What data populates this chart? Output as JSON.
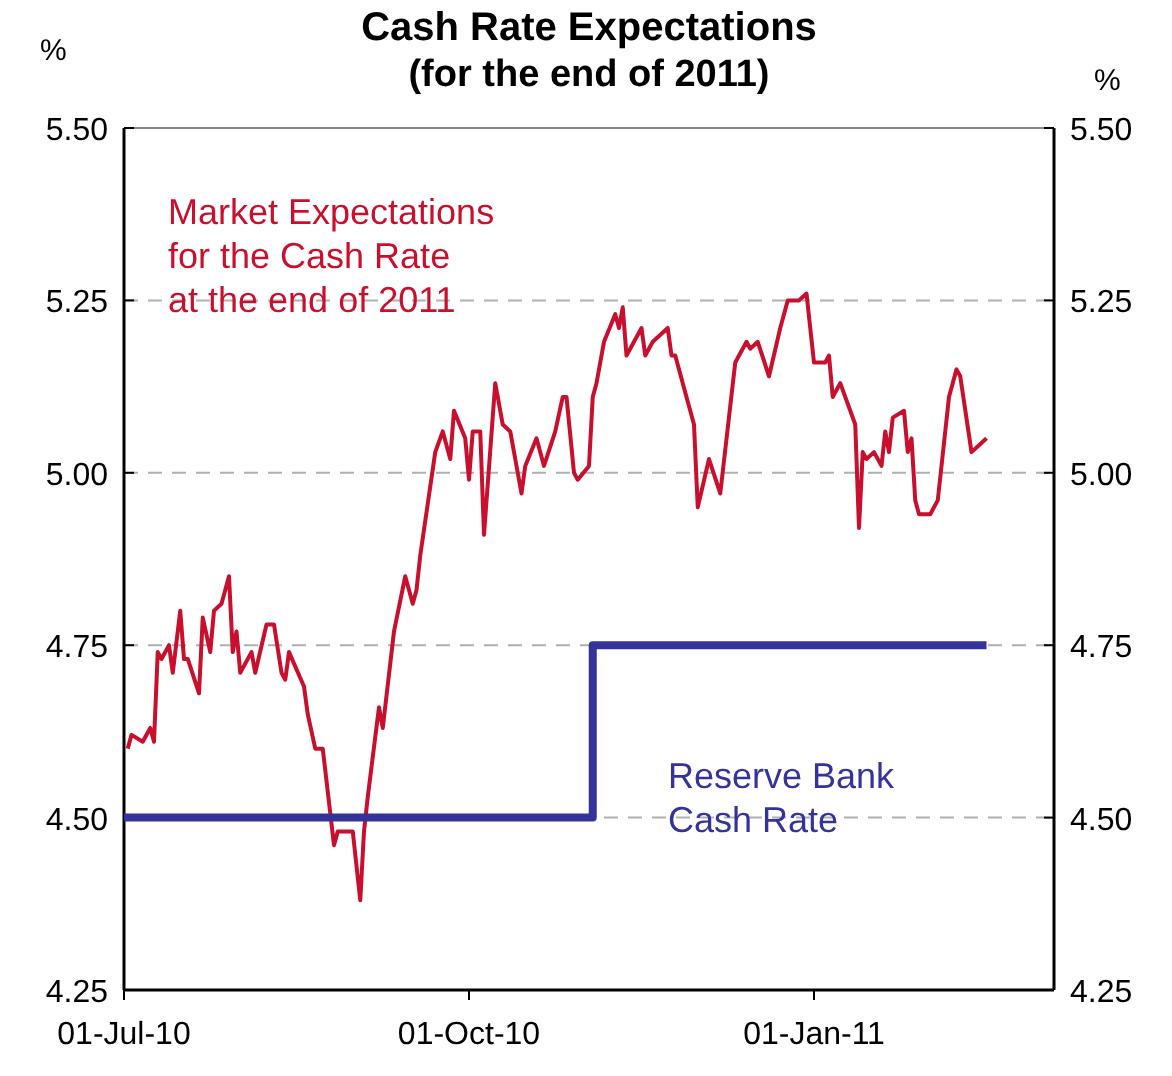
{
  "chart_data": {
    "type": "line",
    "title": "Cash Rate Expectations",
    "subtitle": "(for the end of 2011)",
    "ylabel": "%",
    "y2label": "%",
    "xlim": [
      "2010-07-01",
      "2011-03-06"
    ],
    "xticks": [
      {
        "value": "2010-07-01",
        "label": "01-Jul-10"
      },
      {
        "value": "2010-10-01",
        "label": "01-Oct-10"
      },
      {
        "value": "2011-01-01",
        "label": "01-Jan-11"
      }
    ],
    "ylim": [
      4.25,
      5.5
    ],
    "yticks": [
      {
        "value": 4.25,
        "label": "4.25"
      },
      {
        "value": 4.5,
        "label": "4.50"
      },
      {
        "value": 4.75,
        "label": "4.75"
      },
      {
        "value": 5,
        "label": "5.00"
      },
      {
        "value": 5.25,
        "label": "5.25"
      },
      {
        "value": 5.5,
        "label": "5.50"
      }
    ],
    "y2lim": [
      4.25,
      5.5
    ],
    "y2ticks": [
      {
        "value": 4.25,
        "label": "4.25"
      },
      {
        "value": 4.5,
        "label": "4.50"
      },
      {
        "value": 4.75,
        "label": "4.75"
      },
      {
        "value": 5,
        "label": "5.00"
      },
      {
        "value": 5.25,
        "label": "5.25"
      },
      {
        "value": 5.5,
        "label": "5.50"
      }
    ],
    "grid": "y",
    "legend": false,
    "series": [
      {
        "name": "Market Expectations for the Cash Rate at the end of 2011",
        "color": "#c8102e",
        "x": [
          "2010-07-02",
          "2010-07-03",
          "2010-07-06",
          "2010-07-08",
          "2010-07-09",
          "2010-07-10",
          "2010-07-11",
          "2010-07-13",
          "2010-07-14",
          "2010-07-16",
          "2010-07-17",
          "2010-07-18",
          "2010-07-21",
          "2010-07-22",
          "2010-07-24",
          "2010-07-25",
          "2010-07-27",
          "2010-07-29",
          "2010-07-30",
          "2010-07-31",
          "2010-08-01",
          "2010-08-04",
          "2010-08-05",
          "2010-08-08",
          "2010-08-10",
          "2010-08-12",
          "2010-08-13",
          "2010-08-14",
          "2010-08-18",
          "2010-08-19",
          "2010-08-21",
          "2010-08-23",
          "2010-08-26",
          "2010-08-27",
          "2010-08-31",
          "2010-09-02",
          "2010-09-03",
          "2010-09-04",
          "2010-09-07",
          "2010-09-08",
          "2010-09-11",
          "2010-09-14",
          "2010-09-16",
          "2010-09-17",
          "2010-09-18",
          "2010-09-22",
          "2010-09-24",
          "2010-09-26",
          "2010-09-27",
          "2010-09-30",
          "2010-10-01",
          "2010-10-02",
          "2010-10-04",
          "2010-10-05",
          "2010-10-08",
          "2010-10-10",
          "2010-10-12",
          "2010-10-15",
          "2010-10-16",
          "2010-10-19",
          "2010-10-21",
          "2010-10-24",
          "2010-10-26",
          "2010-10-27",
          "2010-10-29",
          "2010-10-30",
          "2010-11-02",
          "2010-11-03",
          "2010-11-04",
          "2010-11-06",
          "2010-11-09",
          "2010-11-10",
          "2010-11-11",
          "2010-11-12",
          "2010-11-16",
          "2010-11-17",
          "2010-11-19",
          "2010-11-23",
          "2010-11-24",
          "2010-11-25",
          "2010-11-27",
          "2010-11-30",
          "2010-12-01",
          "2010-12-04",
          "2010-12-07",
          "2010-12-11",
          "2010-12-14",
          "2010-12-15",
          "2010-12-17",
          "2010-12-20",
          "2010-12-23",
          "2010-12-25",
          "2010-12-28",
          "2010-12-30",
          "2011-01-01",
          "2011-01-04",
          "2011-01-05",
          "2011-01-06",
          "2011-01-08",
          "2011-01-12",
          "2011-01-13",
          "2011-01-14",
          "2011-01-15",
          "2011-01-17",
          "2011-01-19",
          "2011-01-20",
          "2011-01-21",
          "2011-01-22",
          "2011-01-25",
          "2011-01-26",
          "2011-01-27",
          "2011-01-28",
          "2011-01-29",
          "2011-02-01",
          "2011-02-03",
          "2011-02-06",
          "2011-02-08",
          "2011-02-09",
          "2011-02-12",
          "2011-02-14",
          "2011-02-16"
        ],
        "values": [
          4.6,
          4.62,
          4.61,
          4.63,
          4.61,
          4.74,
          4.73,
          4.75,
          4.71,
          4.8,
          4.73,
          4.73,
          4.68,
          4.79,
          4.74,
          4.8,
          4.81,
          4.85,
          4.74,
          4.77,
          4.71,
          4.74,
          4.71,
          4.78,
          4.78,
          4.71,
          4.7,
          4.74,
          4.69,
          4.65,
          4.6,
          4.6,
          4.46,
          4.48,
          4.48,
          4.38,
          4.48,
          4.53,
          4.66,
          4.63,
          4.77,
          4.85,
          4.81,
          4.83,
          4.88,
          5.03,
          5.06,
          5.02,
          5.09,
          5.05,
          4.99,
          5.06,
          5.06,
          4.91,
          5.13,
          5.07,
          5.06,
          4.97,
          5.01,
          5.05,
          5.01,
          5.06,
          5.11,
          5.11,
          5.0,
          4.99,
          5.01,
          5.11,
          5.13,
          5.19,
          5.23,
          5.21,
          5.24,
          5.17,
          5.21,
          5.17,
          5.19,
          5.21,
          5.17,
          5.17,
          5.13,
          5.07,
          4.95,
          5.02,
          4.97,
          5.16,
          5.19,
          5.18,
          5.19,
          5.14,
          5.21,
          5.25,
          5.25,
          5.26,
          5.16,
          5.16,
          5.17,
          5.11,
          5.13,
          5.07,
          4.92,
          5.03,
          5.02,
          5.03,
          5.01,
          5.06,
          5.03,
          5.08,
          5.09,
          5.03,
          5.05,
          4.96,
          4.94,
          4.94,
          4.96,
          5.11,
          5.15,
          5.14,
          5.03,
          5.04,
          5.05
        ]
      },
      {
        "name": "Reserve Bank Cash Rate",
        "color": "#333399",
        "type": "step",
        "x": [
          "2010-07-01",
          "2010-11-03",
          "2011-02-16"
        ],
        "values": [
          4.5,
          4.75,
          4.75
        ]
      }
    ]
  }
}
